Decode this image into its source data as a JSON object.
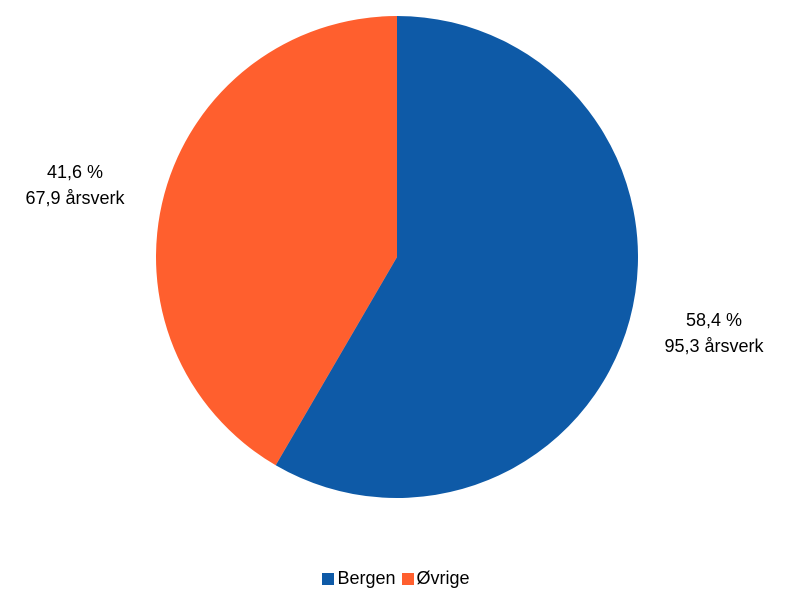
{
  "chart_data": {
    "type": "pie",
    "start_angle_deg": 0,
    "direction": "clockwise",
    "legend_position": "bottom",
    "slices": [
      {
        "name": "Bergen",
        "value": 95.3,
        "percent": 58.4,
        "color": "#0e5aa7",
        "label_line1": "58,4 %",
        "label_line2": "95,3 årsverk"
      },
      {
        "name": "Øvrige",
        "value": 67.9,
        "percent": 41.6,
        "color": "#ff5f2e",
        "label_line1": "41,6 %",
        "label_line2": "67,9 årsverk"
      }
    ]
  }
}
